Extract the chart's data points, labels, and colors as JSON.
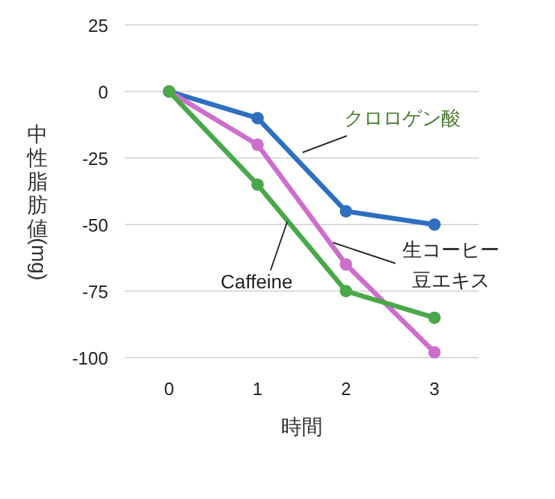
{
  "chart_data": {
    "type": "line",
    "xlabel": "時間",
    "ylabel": "中性脂肪値(mg)",
    "categories": [
      "0",
      "1",
      "2",
      "3"
    ],
    "ylim": [
      -100,
      25
    ],
    "yticks": [
      -100,
      -75,
      -50,
      -25,
      0,
      25
    ],
    "grid": "y",
    "marker": "circle",
    "line_style": "solid",
    "series": [
      {
        "name": "クロロゲン酸",
        "color": "#2e6fbf",
        "values": [
          0,
          -10,
          -45,
          -50
        ]
      },
      {
        "name": "生コーヒー豆エキス",
        "color": "#cc6fcc",
        "values": [
          0,
          -20,
          -65,
          -98
        ]
      },
      {
        "name": "Caffeine",
        "color": "#4aa84a",
        "values": [
          0,
          -35,
          -75,
          -85
        ]
      }
    ]
  }
}
